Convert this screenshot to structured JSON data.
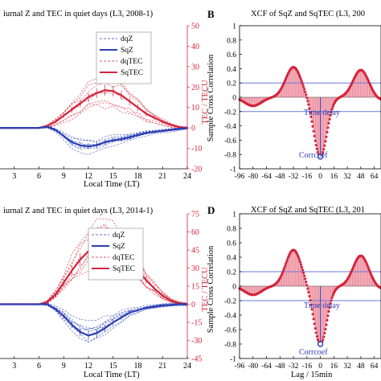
{
  "panels": [
    {
      "letter": "",
      "title": "iurnal Z and TEC in quiet days  (L3, 2008-1)",
      "xlabel": "Local Time (LT)",
      "ylabel_right": "TEC / TECU",
      "xticks": [
        "3",
        "6",
        "9",
        "12",
        "15",
        "18",
        "21",
        "24"
      ],
      "yticks_right": [
        "50",
        "40",
        "30",
        "20",
        "10",
        "0",
        "-10",
        "-20"
      ],
      "legend": [
        "dqZ",
        "SqZ",
        "dqTEC",
        "SqTEC"
      ]
    },
    {
      "letter": "B",
      "title": "XCF of SqZ and SqTEC (L3, 200",
      "xlabel": "",
      "ylabel": "Sample Cross Correlation",
      "xticks": [
        "-96",
        "-80",
        "-64",
        "-48",
        "-32",
        "-16",
        "0",
        "16",
        "32",
        "48",
        "64"
      ],
      "yticks": [
        "1",
        "0.8",
        "0.6",
        "0.4",
        "0.2",
        "0",
        "-0.2",
        "-0.4",
        "-0.6",
        "-0.8",
        "-1"
      ],
      "annotations": [
        "Time delay",
        "Corrcoef"
      ]
    },
    {
      "letter": "",
      "title": "iurnal Z and TEC in quiet days  (L3, 2014-1)",
      "xlabel": "Local Time (LT)",
      "ylabel_right": "TEC / TECU",
      "xticks": [
        "3",
        "6",
        "9",
        "12",
        "15",
        "18",
        "21",
        "24"
      ],
      "yticks_right": [
        "75",
        "60",
        "45",
        "30",
        "15",
        "0",
        "-15",
        "-30",
        "-45"
      ],
      "legend": [
        "dqZ",
        "SqZ",
        "dqTEC",
        "SqTEC"
      ]
    },
    {
      "letter": "D",
      "title": "XCF of SqZ and SqTEC (L3, 201",
      "xlabel": "Lag / 15min",
      "ylabel": "Sample Cross Correlation",
      "xticks": [
        "-96",
        "-80",
        "-64",
        "-48",
        "-32",
        "-16",
        "0",
        "16",
        "32",
        "48",
        "64"
      ],
      "yticks": [
        "1",
        "0.8",
        "0.6",
        "0.4",
        "0.2",
        "0",
        "-0.2",
        "-0.4",
        "-0.6",
        "-0.8",
        "-1"
      ],
      "annotations": [
        "Time delay",
        "Corrcoef"
      ]
    }
  ],
  "colors": {
    "z": "#2c3fb4",
    "tec": "#d4243b",
    "tec_fill": "#f3a5b6",
    "ref": "#6a78d8"
  },
  "chart_data": [
    {
      "type": "line",
      "title": "iurnal Z and TEC in quiet days  (L3, 2008-1)",
      "xlabel": "Local Time (LT)",
      "ylabel_right": "TEC / TECU",
      "xlim": [
        0,
        24
      ],
      "ylim_right": [
        -20,
        50
      ],
      "series": [
        {
          "name": "SqZ",
          "x": [
            0,
            3,
            6,
            7,
            8,
            9,
            10,
            11,
            12,
            13,
            14,
            15,
            16,
            17,
            18,
            19,
            20,
            21,
            22,
            23,
            24
          ],
          "y": [
            0,
            0,
            0,
            0.5,
            -1,
            -4,
            -7,
            -8.5,
            -9,
            -8.5,
            -7,
            -6,
            -5.5,
            -4.5,
            -3.5,
            -2.5,
            -2,
            -1.5,
            -1,
            -0.5,
            0
          ]
        },
        {
          "name": "SqTEC",
          "x": [
            0,
            3,
            6,
            7,
            8,
            9,
            10,
            11,
            12,
            13,
            14,
            15,
            16,
            17,
            18,
            19,
            20,
            21,
            22,
            23,
            24
          ],
          "y": [
            0,
            0,
            0,
            1,
            3,
            6,
            9,
            12,
            15,
            17,
            18.5,
            18,
            16,
            13,
            10,
            7,
            5,
            3,
            1.5,
            0.5,
            0
          ]
        }
      ]
    },
    {
      "type": "bar",
      "title": "XCF of SqZ and SqTEC (L3, 200",
      "ylabel": "Sample Cross Correlation",
      "xlim": [
        -96,
        72
      ],
      "ylim": [
        -1,
        1
      ],
      "reference_lines": [
        0.2,
        -0.2
      ],
      "peak_min": {
        "lag": 0,
        "value": -0.83
      },
      "peaks_max": [
        {
          "lag": -32,
          "value": 0.42
        },
        {
          "lag": 48,
          "value": 0.38
        }
      ]
    },
    {
      "type": "line",
      "title": "iurnal Z and TEC in quiet days  (L3, 2014-1)",
      "xlabel": "Local Time (LT)",
      "ylabel_right": "TEC / TECU",
      "xlim": [
        0,
        24
      ],
      "ylim_right": [
        -45,
        75
      ],
      "series": [
        {
          "name": "SqZ",
          "x": [
            0,
            3,
            6,
            7,
            8,
            9,
            10,
            11,
            12,
            13,
            14,
            15,
            16,
            17,
            18,
            19,
            20,
            21,
            22,
            23,
            24
          ],
          "y": [
            0,
            0,
            0,
            0,
            -4,
            -10,
            -17,
            -23,
            -26,
            -24,
            -20,
            -15,
            -11,
            -7,
            -5,
            -3,
            -2,
            -1,
            -0.5,
            0,
            0
          ]
        },
        {
          "name": "SqTEC",
          "x": [
            0,
            3,
            6,
            7,
            8,
            9,
            10,
            11,
            12,
            13,
            14,
            15,
            16,
            17,
            18,
            19,
            20,
            21,
            22,
            23,
            24
          ],
          "y": [
            0,
            0,
            0,
            2,
            8,
            18,
            28,
            37,
            44,
            48,
            48,
            46,
            42,
            36,
            28,
            20,
            13,
            7,
            3,
            1,
            0
          ]
        }
      ]
    },
    {
      "type": "bar",
      "title": "XCF of SqZ and SqTEC (L3, 201",
      "xlabel": "Lag / 15min",
      "ylabel": "Sample Cross Correlation",
      "xlim": [
        -96,
        72
      ],
      "ylim": [
        -1,
        1
      ],
      "reference_lines": [
        0.2,
        -0.2
      ],
      "peak_min": {
        "lag": 0,
        "value": -0.8
      },
      "peaks_max": [
        {
          "lag": -32,
          "value": 0.5
        },
        {
          "lag": 48,
          "value": 0.42
        }
      ]
    }
  ]
}
